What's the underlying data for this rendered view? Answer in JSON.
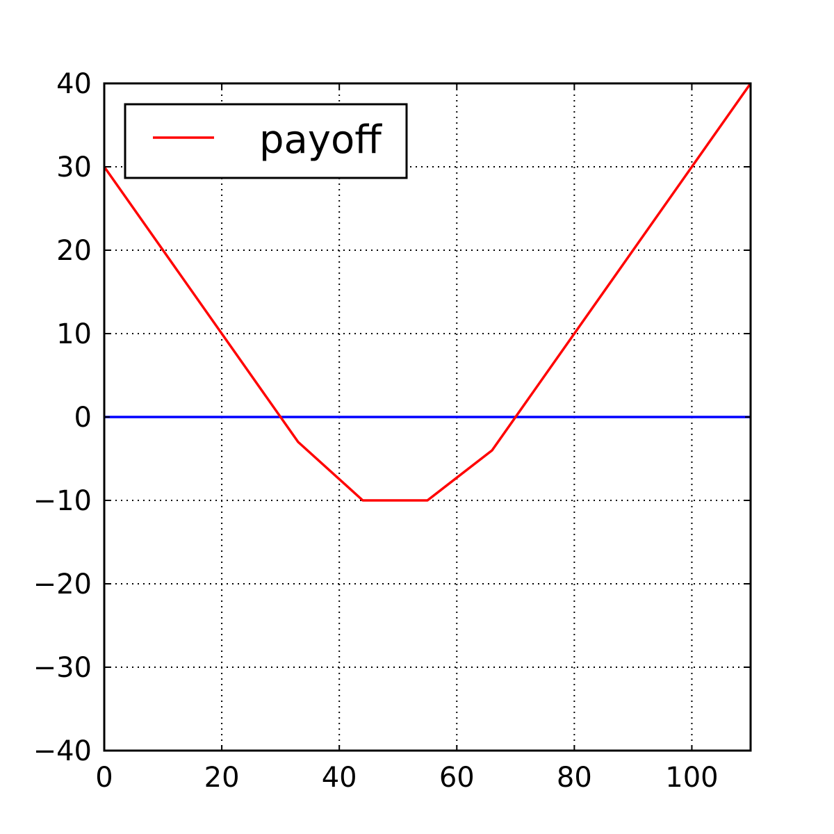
{
  "chart_data": {
    "type": "line",
    "title": "",
    "xlabel": "",
    "ylabel": "",
    "xlim": [
      0,
      110
    ],
    "ylim": [
      -40,
      40
    ],
    "xticks": [
      0,
      20,
      40,
      60,
      80,
      100
    ],
    "xtick_labels": [
      "0",
      "20",
      "40",
      "60",
      "80",
      "100"
    ],
    "yticks": [
      40,
      30,
      20,
      10,
      0,
      -10,
      -20,
      -30,
      -40
    ],
    "ytick_labels": [
      "40",
      "30",
      "20",
      "10",
      "0",
      "−10",
      "−20",
      "−30",
      "−40"
    ],
    "grid": true,
    "grid_style": "dotted",
    "legend": {
      "position": "top-left",
      "entries": [
        "payoff"
      ]
    },
    "series": [
      {
        "name": "payoff",
        "color": "#ff0000",
        "x": [
          0,
          33,
          44,
          55,
          66,
          110
        ],
        "y": [
          30,
          -3,
          -10,
          -10,
          -4,
          40
        ]
      },
      {
        "color": "#0000ff",
        "x": [
          0,
          110
        ],
        "y": [
          0,
          0
        ]
      }
    ]
  }
}
